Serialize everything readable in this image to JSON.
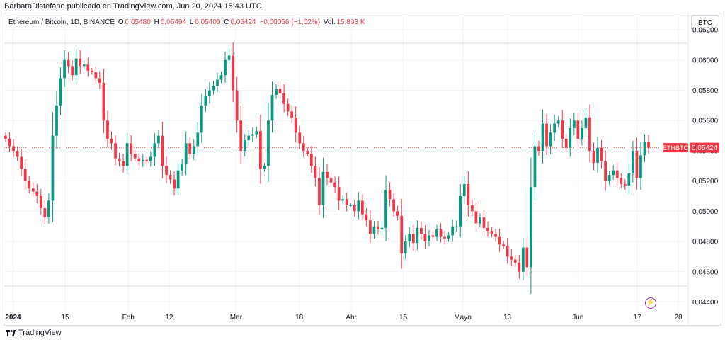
{
  "caption": "BarbaraDistefano publicado en TradingView.com, Jun 20, 2024 15:43 UTC",
  "legend": {
    "symbol": "Ethereum / Bitcoin, 1D, BINANCE",
    "open_label": "O",
    "open": "0,05480",
    "high_label": "H",
    "high": "0,05494",
    "low_label": "L",
    "low": "0,05400",
    "close_label": "C",
    "close": "0,05424",
    "change": "−0,00056 (−1,02%)",
    "vol_label": "Vol.",
    "vol": "15,893 K"
  },
  "currency_button": "BTC",
  "brand": "TradingView",
  "colors": {
    "up": "#089981",
    "down": "#f23645",
    "grid": "#f0f3fa",
    "text": "#131722"
  },
  "icons": {
    "logo": "tradingview-logo-icon",
    "events": "lightning-icon"
  },
  "chart_data": {
    "type": "candlestick",
    "symbol": "ETHBTC",
    "price_label": "0,05424",
    "ylim": [
      0.0436,
      0.0621
    ],
    "y_ticks": [
      "0,06200",
      "0,06000",
      "0,05800",
      "0,05600",
      "0,05400",
      "0,05200",
      "0,05000",
      "0,04800",
      "0,04600",
      "0,04400"
    ],
    "y_tick_values": [
      0.062,
      0.06,
      0.058,
      0.056,
      0.054,
      0.052,
      0.05,
      0.048,
      0.046,
      0.044
    ],
    "x_ticks": [
      {
        "label": "2024",
        "date": "2024-01-01"
      },
      {
        "label": "15",
        "date": "2024-01-15"
      },
      {
        "label": "Feb",
        "date": "2024-02-01"
      },
      {
        "label": "12",
        "date": "2024-02-12"
      },
      {
        "label": "Mar",
        "date": "2024-03-01"
      },
      {
        "label": "18",
        "date": "2024-03-18"
      },
      {
        "label": "Abr",
        "date": "2024-04-01"
      },
      {
        "label": "15",
        "date": "2024-04-15"
      },
      {
        "label": "Mayo",
        "date": "2024-05-01"
      },
      {
        "label": "13",
        "date": "2024-05-13"
      },
      {
        "label": "Jun",
        "date": "2024-06-01"
      },
      {
        "label": "17",
        "date": "2024-06-17"
      },
      {
        "label": "28",
        "date": "2024-06-28"
      }
    ],
    "start_date": "2023-12-30",
    "closes": [
      0.0548,
      0.0543,
      0.054,
      0.0536,
      0.0528,
      0.052,
      0.0515,
      0.0513,
      0.051,
      0.0502,
      0.0496,
      0.0507,
      0.055,
      0.057,
      0.0588,
      0.06,
      0.0596,
      0.059,
      0.0601,
      0.0596,
      0.0597,
      0.0593,
      0.0592,
      0.0588,
      0.0585,
      0.056,
      0.0548,
      0.0545,
      0.0535,
      0.0533,
      0.053,
      0.0545,
      0.0538,
      0.0535,
      0.0533,
      0.0534,
      0.0533,
      0.0536,
      0.0545,
      0.055,
      0.053,
      0.0524,
      0.0521,
      0.0515,
      0.0527,
      0.0531,
      0.0545,
      0.0538,
      0.0543,
      0.0552,
      0.057,
      0.0576,
      0.058,
      0.0583,
      0.0587,
      0.059,
      0.06,
      0.0603,
      0.058,
      0.056,
      0.054,
      0.0547,
      0.055,
      0.0551,
      0.0553,
      0.0528,
      0.053,
      0.056,
      0.0577,
      0.0581,
      0.0578,
      0.0571,
      0.0566,
      0.0562,
      0.0552,
      0.0545,
      0.054,
      0.0538,
      0.053,
      0.0522,
      0.0504,
      0.0526,
      0.0522,
      0.0519,
      0.0516,
      0.0507,
      0.0508,
      0.0504,
      0.0504,
      0.05,
      0.0507,
      0.0498,
      0.0494,
      0.0485,
      0.049,
      0.0488,
      0.0489,
      0.0514,
      0.0508,
      0.05,
      0.0497,
      0.0472,
      0.048,
      0.0485,
      0.0479,
      0.0489,
      0.0485,
      0.048,
      0.0484,
      0.0483,
      0.0488,
      0.0483,
      0.0482,
      0.0484,
      0.049,
      0.049,
      0.051,
      0.0518,
      0.0504,
      0.05,
      0.0492,
      0.0496,
      0.0489,
      0.0487,
      0.0485,
      0.0483,
      0.0478,
      0.0477,
      0.047,
      0.0468,
      0.0466,
      0.046,
      0.0476,
      0.0463,
      0.0516,
      0.0543,
      0.054,
      0.0558,
      0.0543,
      0.0552,
      0.0558,
      0.056,
      0.0548,
      0.0542,
      0.0555,
      0.056,
      0.0548,
      0.0555,
      0.0562,
      0.054,
      0.0532,
      0.0542,
      0.0533,
      0.052,
      0.0524,
      0.0527,
      0.0522,
      0.0518,
      0.0517,
      0.0525,
      0.054,
      0.0522,
      0.0537,
      0.0546,
      0.0542
    ]
  }
}
